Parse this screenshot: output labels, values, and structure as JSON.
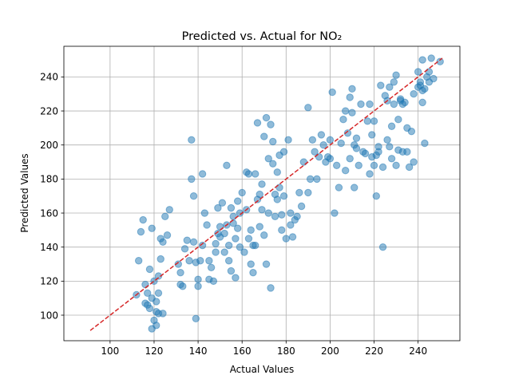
{
  "chart_data": {
    "type": "scatter",
    "title": "Predicted vs. Actual for NO₂",
    "xlabel": "Actual Values",
    "ylabel": "Predicted Values",
    "xlim": [
      79,
      259
    ],
    "ylim": [
      85,
      258
    ],
    "xticks": [
      100,
      120,
      140,
      160,
      180,
      200,
      220,
      240
    ],
    "yticks": [
      100,
      120,
      140,
      160,
      180,
      200,
      220,
      240
    ],
    "grid": true,
    "point_color": "#1f77b4",
    "reference_line": {
      "style": "dashed",
      "color": "#d62728",
      "from": [
        91,
        91
      ],
      "to": [
        251,
        251
      ]
    },
    "points": [
      [
        112,
        112
      ],
      [
        113,
        132
      ],
      [
        114,
        149
      ],
      [
        115,
        156
      ],
      [
        116,
        107
      ],
      [
        116,
        118
      ],
      [
        117,
        113
      ],
      [
        117,
        106
      ],
      [
        118,
        104
      ],
      [
        118,
        127
      ],
      [
        119,
        151
      ],
      [
        119,
        110
      ],
      [
        119,
        92
      ],
      [
        120,
        97
      ],
      [
        120,
        120
      ],
      [
        121,
        108
      ],
      [
        121,
        102
      ],
      [
        121,
        94
      ],
      [
        122,
        123
      ],
      [
        122,
        113
      ],
      [
        122,
        101
      ],
      [
        123,
        133
      ],
      [
        123,
        145
      ],
      [
        124,
        143
      ],
      [
        124,
        101
      ],
      [
        125,
        158
      ],
      [
        126,
        147
      ],
      [
        127,
        162
      ],
      [
        131,
        130
      ],
      [
        132,
        118
      ],
      [
        132,
        125
      ],
      [
        133,
        117
      ],
      [
        134,
        139
      ],
      [
        135,
        144
      ],
      [
        136,
        132
      ],
      [
        137,
        203
      ],
      [
        137,
        180
      ],
      [
        138,
        143
      ],
      [
        138,
        170
      ],
      [
        139,
        131
      ],
      [
        139,
        98
      ],
      [
        140,
        117
      ],
      [
        140,
        121
      ],
      [
        141,
        132
      ],
      [
        142,
        141
      ],
      [
        142,
        183
      ],
      [
        143,
        160
      ],
      [
        144,
        153
      ],
      [
        145,
        121
      ],
      [
        145,
        132
      ],
      [
        146,
        128
      ],
      [
        147,
        120
      ],
      [
        148,
        142
      ],
      [
        148,
        137
      ],
      [
        149,
        148
      ],
      [
        149,
        163
      ],
      [
        150,
        152
      ],
      [
        150,
        146
      ],
      [
        151,
        166
      ],
      [
        152,
        148
      ],
      [
        152,
        137
      ],
      [
        153,
        188
      ],
      [
        153,
        153
      ],
      [
        154,
        141
      ],
      [
        154,
        132
      ],
      [
        155,
        126
      ],
      [
        155,
        163
      ],
      [
        156,
        158
      ],
      [
        156,
        154
      ],
      [
        157,
        145
      ],
      [
        157,
        122
      ],
      [
        158,
        167
      ],
      [
        158,
        151
      ],
      [
        159,
        160
      ],
      [
        159,
        140
      ],
      [
        160,
        172
      ],
      [
        161,
        137
      ],
      [
        162,
        162
      ],
      [
        162,
        184
      ],
      [
        163,
        183
      ],
      [
        163,
        145
      ],
      [
        164,
        130
      ],
      [
        164,
        150
      ],
      [
        165,
        141
      ],
      [
        165,
        125
      ],
      [
        166,
        183
      ],
      [
        166,
        141
      ],
      [
        167,
        168
      ],
      [
        167,
        213
      ],
      [
        168,
        171
      ],
      [
        168,
        152
      ],
      [
        169,
        162
      ],
      [
        169,
        177
      ],
      [
        170,
        205
      ],
      [
        170,
        147
      ],
      [
        171,
        216
      ],
      [
        171,
        130
      ],
      [
        172,
        192
      ],
      [
        172,
        160
      ],
      [
        173,
        212
      ],
      [
        173,
        116
      ],
      [
        174,
        202
      ],
      [
        174,
        189
      ],
      [
        175,
        171
      ],
      [
        175,
        158
      ],
      [
        176,
        168
      ],
      [
        176,
        184
      ],
      [
        177,
        194
      ],
      [
        177,
        175
      ],
      [
        178,
        159
      ],
      [
        178,
        150
      ],
      [
        179,
        196
      ],
      [
        179,
        170
      ],
      [
        180,
        145
      ],
      [
        181,
        203
      ],
      [
        182,
        160
      ],
      [
        182,
        153
      ],
      [
        183,
        146
      ],
      [
        184,
        156
      ],
      [
        185,
        158
      ],
      [
        186,
        172
      ],
      [
        187,
        164
      ],
      [
        188,
        190
      ],
      [
        190,
        222
      ],
      [
        190,
        172
      ],
      [
        191,
        180
      ],
      [
        192,
        203
      ],
      [
        193,
        196
      ],
      [
        194,
        180
      ],
      [
        195,
        193
      ],
      [
        196,
        206
      ],
      [
        197,
        200
      ],
      [
        198,
        190
      ],
      [
        199,
        193
      ],
      [
        200,
        192
      ],
      [
        200,
        203
      ],
      [
        201,
        231
      ],
      [
        202,
        160
      ],
      [
        203,
        188
      ],
      [
        204,
        175
      ],
      [
        205,
        201
      ],
      [
        206,
        215
      ],
      [
        207,
        185
      ],
      [
        207,
        220
      ],
      [
        208,
        207
      ],
      [
        209,
        228
      ],
      [
        209,
        192
      ],
      [
        210,
        219
      ],
      [
        210,
        233
      ],
      [
        211,
        200
      ],
      [
        211,
        175
      ],
      [
        212,
        198
      ],
      [
        212,
        204
      ],
      [
        213,
        188
      ],
      [
        214,
        224
      ],
      [
        215,
        196
      ],
      [
        216,
        195
      ],
      [
        217,
        214
      ],
      [
        218,
        183
      ],
      [
        218,
        224
      ],
      [
        219,
        193
      ],
      [
        219,
        206
      ],
      [
        220,
        188
      ],
      [
        220,
        214
      ],
      [
        221,
        194
      ],
      [
        221,
        170
      ],
      [
        222,
        196
      ],
      [
        222,
        199
      ],
      [
        223,
        235
      ],
      [
        224,
        140
      ],
      [
        224,
        187
      ],
      [
        225,
        229
      ],
      [
        226,
        226
      ],
      [
        226,
        203
      ],
      [
        227,
        234
      ],
      [
        227,
        199
      ],
      [
        228,
        211
      ],
      [
        228,
        192
      ],
      [
        229,
        224
      ],
      [
        229,
        237
      ],
      [
        230,
        241
      ],
      [
        230,
        188
      ],
      [
        231,
        215
      ],
      [
        231,
        197
      ],
      [
        232,
        227
      ],
      [
        232,
        226
      ],
      [
        233,
        196
      ],
      [
        233,
        224
      ],
      [
        234,
        225
      ],
      [
        235,
        210
      ],
      [
        235,
        196
      ],
      [
        236,
        187
      ],
      [
        237,
        208
      ],
      [
        238,
        190
      ],
      [
        238,
        230
      ],
      [
        240,
        243
      ],
      [
        240,
        234
      ],
      [
        241,
        235
      ],
      [
        241,
        237
      ],
      [
        242,
        250
      ],
      [
        242,
        232
      ],
      [
        242,
        225
      ],
      [
        243,
        233
      ],
      [
        243,
        201
      ],
      [
        244,
        240
      ],
      [
        245,
        243
      ],
      [
        245,
        237
      ],
      [
        246,
        251
      ],
      [
        247,
        239
      ],
      [
        250,
        249
      ]
    ]
  }
}
